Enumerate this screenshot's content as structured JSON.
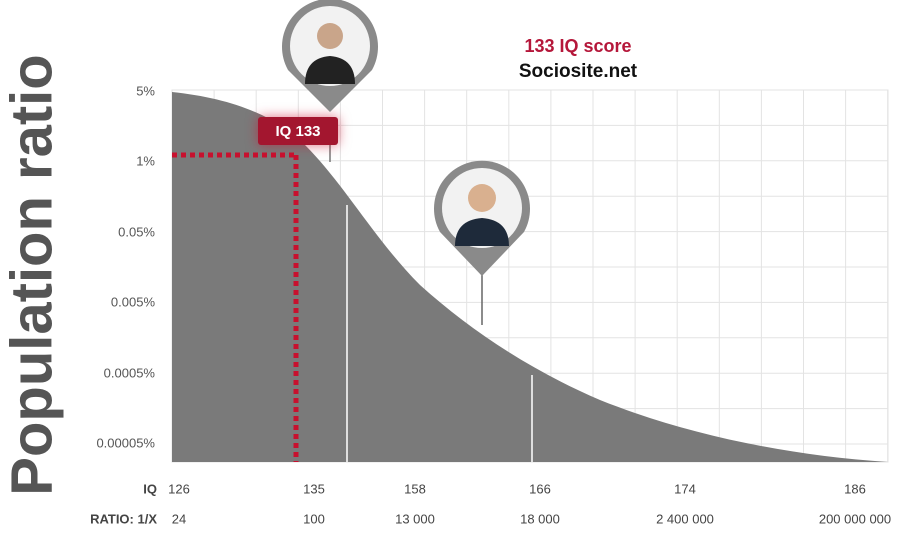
{
  "header": {
    "title": "133 IQ score",
    "subtitle": "Sociosite.net"
  },
  "y_axis": {
    "label": "Population ratio",
    "ticks": [
      "5%",
      "1%",
      "0.05%",
      "0.005%",
      "0.0005%",
      "0.00005%"
    ]
  },
  "highlight": {
    "label": "IQ 133"
  },
  "iq_row": {
    "label": "IQ",
    "values": [
      "126",
      "135",
      "158",
      "166",
      "174",
      "186"
    ]
  },
  "ratio_row": {
    "label": "RATIO: 1/X",
    "values": [
      "24",
      "100",
      "13 000",
      "18 000",
      "2 400 000",
      "200 000 000"
    ]
  }
}
